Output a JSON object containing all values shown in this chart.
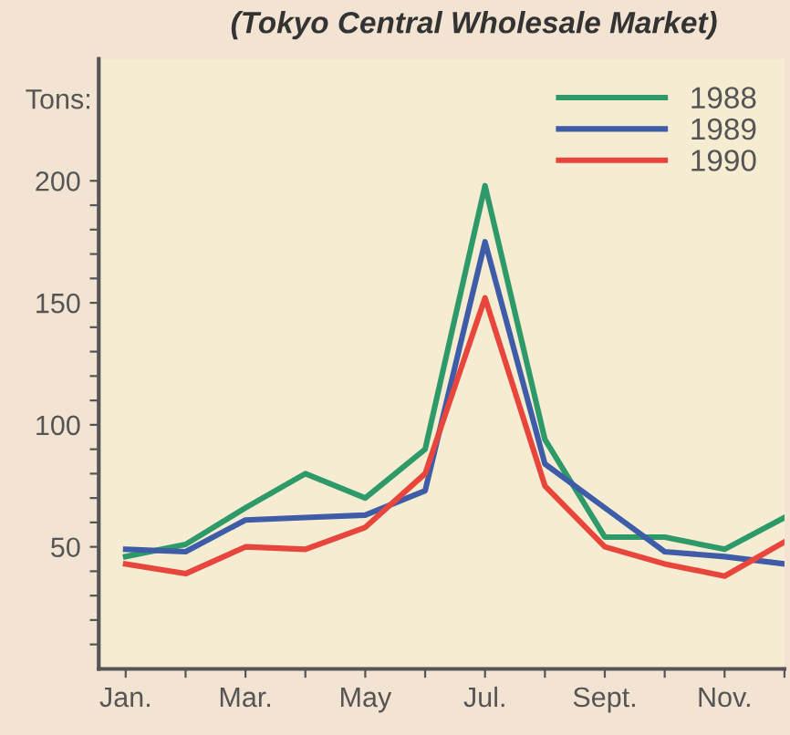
{
  "chart_data": {
    "type": "line",
    "title": "(Tokyo Central Wholesale Market)",
    "ylabel": "Tons:",
    "categories": [
      "Jan.",
      null,
      "Mar.",
      null,
      "May",
      null,
      "Jul.",
      null,
      "Sept.",
      null,
      "Nov.",
      null
    ],
    "series": [
      {
        "name": "1988",
        "color": "#2e9a6a",
        "values": [
          46,
          51,
          66,
          80,
          70,
          90,
          198,
          94,
          54,
          54,
          49,
          62
        ]
      },
      {
        "name": "1989",
        "color": "#3e5ca8",
        "values": [
          49,
          48,
          61,
          62,
          63,
          73,
          175,
          84,
          66,
          48,
          46,
          43
        ]
      },
      {
        "name": "1990",
        "color": "#e8463c",
        "values": [
          43,
          39,
          50,
          49,
          58,
          80,
          152,
          75,
          50,
          43,
          38,
          52
        ]
      }
    ],
    "ylim": [
      0,
      250
    ],
    "yticks": [
      {
        "value": 10,
        "label": null
      },
      {
        "value": 20,
        "label": null
      },
      {
        "value": 30,
        "label": null
      },
      {
        "value": 40,
        "label": null
      },
      50,
      {
        "value": 60,
        "label": null
      },
      {
        "value": 70,
        "label": null
      },
      {
        "value": 80,
        "label": null
      },
      {
        "value": 90,
        "label": null
      },
      100,
      {
        "value": 110,
        "label": null
      },
      {
        "value": 120,
        "label": null
      },
      {
        "value": 130,
        "label": null
      },
      {
        "value": 140,
        "label": null
      },
      150,
      {
        "value": 160,
        "label": null
      },
      {
        "value": 170,
        "label": null
      },
      {
        "value": 180,
        "label": null
      },
      {
        "value": 190,
        "label": null
      },
      200
    ],
    "grid": false,
    "legend": "top right",
    "marker": "none",
    "line_style": "solid"
  }
}
